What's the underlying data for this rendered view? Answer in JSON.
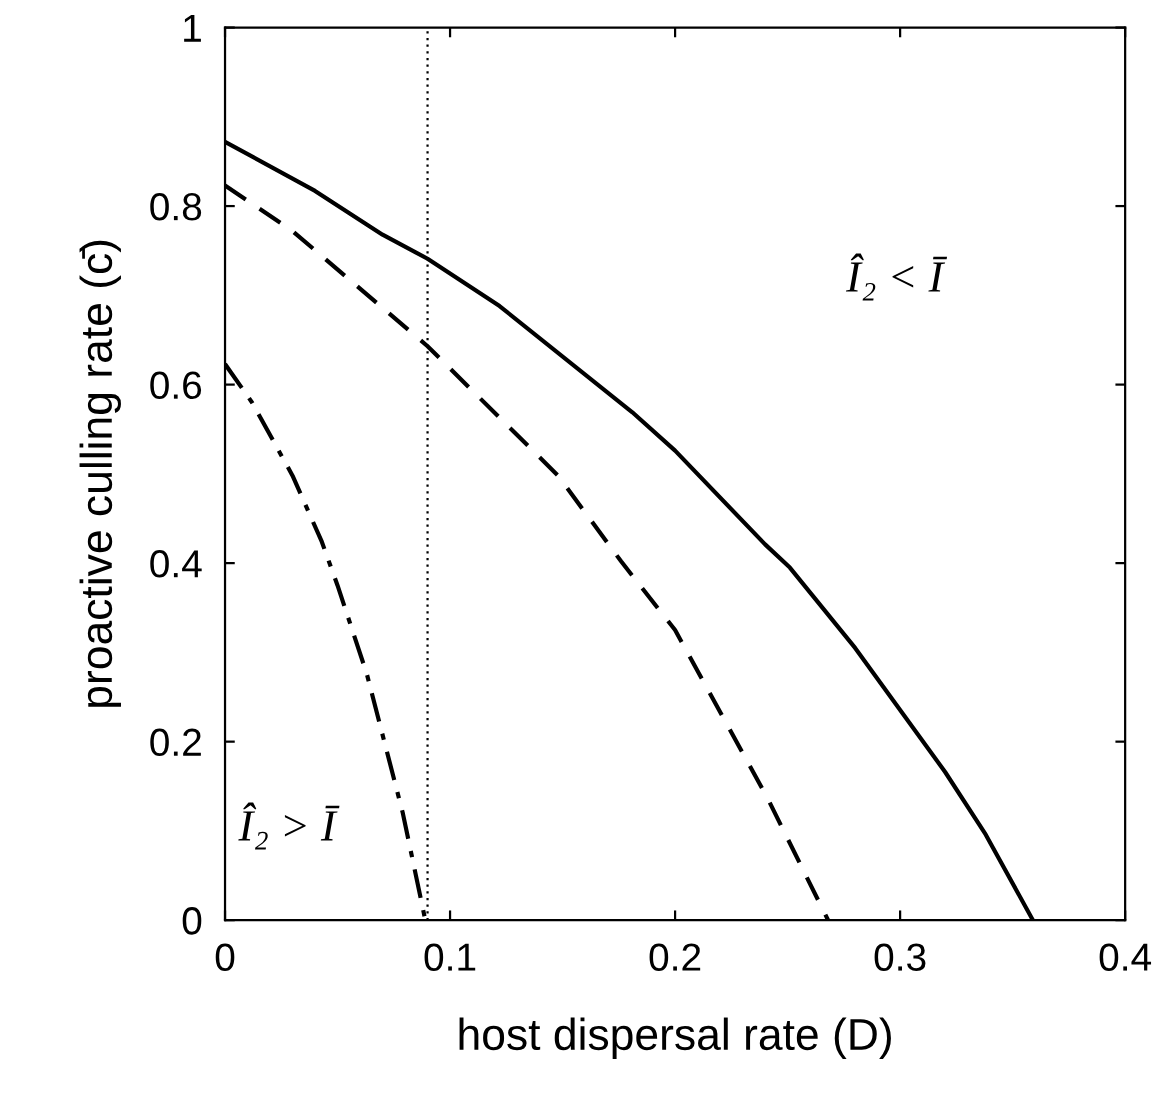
{
  "chart_data": {
    "type": "line",
    "xlabel": "host dispersal rate (D)",
    "ylabel": "proactive culling rate (c̄)",
    "xlim": [
      0,
      0.4
    ],
    "xticks": [
      0,
      0.1,
      0.2,
      0.3,
      0.4
    ],
    "ylim": [
      0,
      1
    ],
    "yticks": [
      0,
      0.2,
      0.4,
      0.6,
      0.8,
      1
    ],
    "series": [
      {
        "color": "#000000",
        "line_style": "solid",
        "x": [
          0,
          0.04,
          0.07,
          0.09,
          0.122,
          0.181,
          0.2,
          0.24,
          0.251,
          0.28,
          0.32,
          0.338,
          0.359
        ],
        "values": [
          0.872,
          0.817,
          0.768,
          0.741,
          0.688,
          0.569,
          0.526,
          0.421,
          0.395,
          0.305,
          0.166,
          0.096,
          0
        ]
      },
      {
        "color": "#000000",
        "line_style": "dashed",
        "x": [
          0,
          0.03,
          0.09,
          0.148,
          0.176,
          0.2,
          0.241,
          0.268
        ],
        "values": [
          0.823,
          0.772,
          0.643,
          0.498,
          0.402,
          0.325,
          0.137,
          0
        ]
      },
      {
        "color": "#000000",
        "line_style": "dashdot",
        "x": [
          0,
          0.012,
          0.03,
          0.043,
          0.05,
          0.063,
          0.079,
          0.089
        ],
        "values": [
          0.623,
          0.58,
          0.498,
          0.424,
          0.375,
          0.276,
          0.12,
          0
        ]
      }
    ],
    "ref_lines": [
      {
        "axis": "x",
        "value": 0.09,
        "color": "#000000",
        "line_style": "dotted"
      }
    ],
    "annotations": [
      "Î₂ < Ī",
      "Î₂ > Ī"
    ],
    "grid": false,
    "legend": false,
    "marker": "none"
  }
}
